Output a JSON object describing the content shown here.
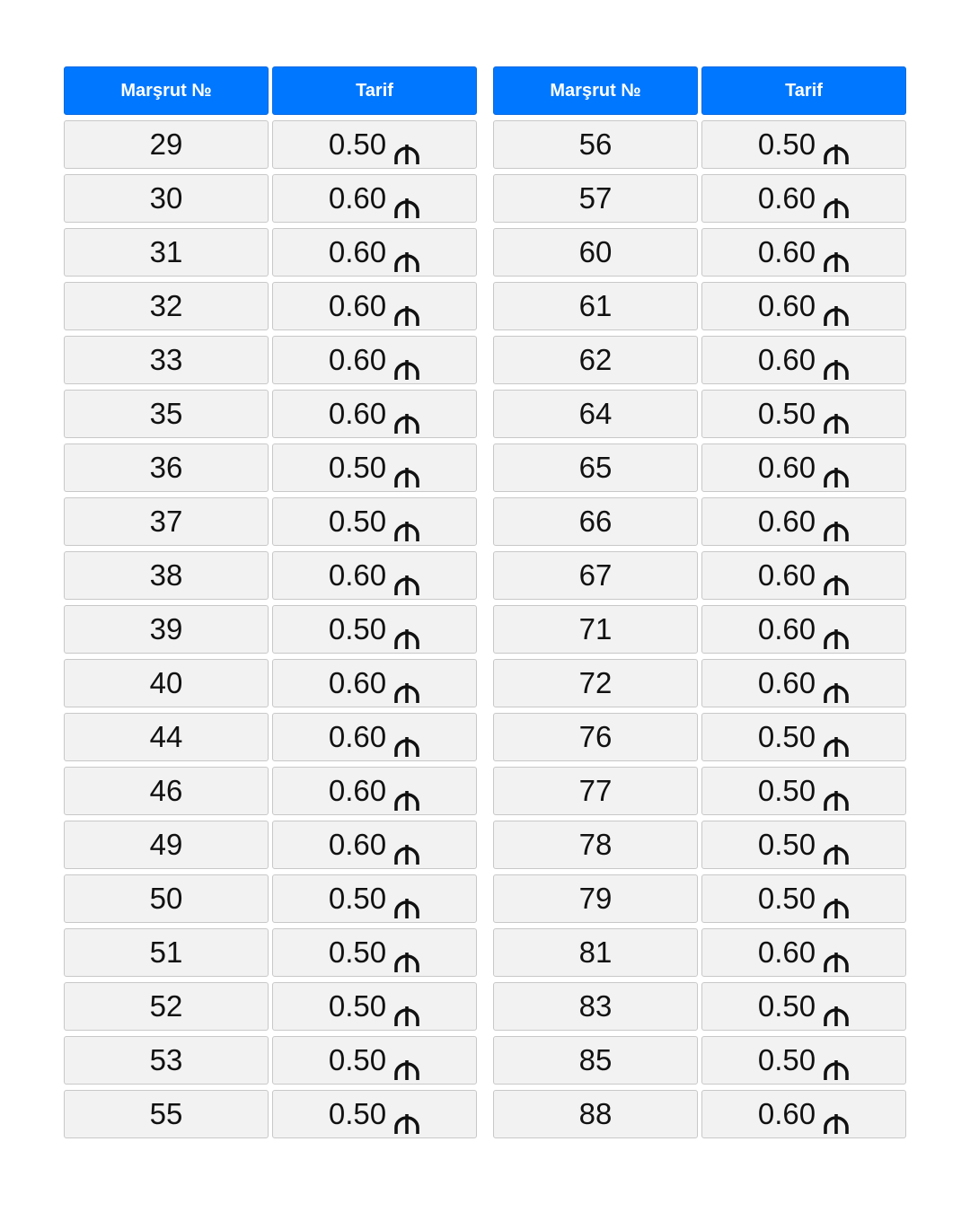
{
  "header": {
    "route_label": "Marşrut №",
    "fare_label": "Tarif"
  },
  "currency_icon": "manat-sign-icon",
  "colors": {
    "header_bg": "#0077ff",
    "cell_bg": "#f2f2f2"
  },
  "tables": [
    {
      "rows": [
        {
          "route": "29",
          "fare": "0.50"
        },
        {
          "route": "30",
          "fare": "0.60"
        },
        {
          "route": "31",
          "fare": "0.60"
        },
        {
          "route": "32",
          "fare": "0.60"
        },
        {
          "route": "33",
          "fare": "0.60"
        },
        {
          "route": "35",
          "fare": "0.60"
        },
        {
          "route": "36",
          "fare": "0.50"
        },
        {
          "route": "37",
          "fare": "0.50"
        },
        {
          "route": "38",
          "fare": "0.60"
        },
        {
          "route": "39",
          "fare": "0.50"
        },
        {
          "route": "40",
          "fare": "0.60"
        },
        {
          "route": "44",
          "fare": "0.60"
        },
        {
          "route": "46",
          "fare": "0.60"
        },
        {
          "route": "49",
          "fare": "0.60"
        },
        {
          "route": "50",
          "fare": "0.50"
        },
        {
          "route": "51",
          "fare": "0.50"
        },
        {
          "route": "52",
          "fare": "0.50"
        },
        {
          "route": "53",
          "fare": "0.50"
        },
        {
          "route": "55",
          "fare": "0.50"
        }
      ]
    },
    {
      "rows": [
        {
          "route": "56",
          "fare": "0.50"
        },
        {
          "route": "57",
          "fare": "0.60"
        },
        {
          "route": "60",
          "fare": "0.60"
        },
        {
          "route": "61",
          "fare": "0.60"
        },
        {
          "route": "62",
          "fare": "0.60"
        },
        {
          "route": "64",
          "fare": "0.50"
        },
        {
          "route": "65",
          "fare": "0.60"
        },
        {
          "route": "66",
          "fare": "0.60"
        },
        {
          "route": "67",
          "fare": "0.60"
        },
        {
          "route": "71",
          "fare": "0.60"
        },
        {
          "route": "72",
          "fare": "0.60"
        },
        {
          "route": "76",
          "fare": "0.50"
        },
        {
          "route": "77",
          "fare": "0.50"
        },
        {
          "route": "78",
          "fare": "0.50"
        },
        {
          "route": "79",
          "fare": "0.50"
        },
        {
          "route": "81",
          "fare": "0.60"
        },
        {
          "route": "83",
          "fare": "0.50"
        },
        {
          "route": "85",
          "fare": "0.50"
        },
        {
          "route": "88",
          "fare": "0.60"
        }
      ]
    }
  ]
}
